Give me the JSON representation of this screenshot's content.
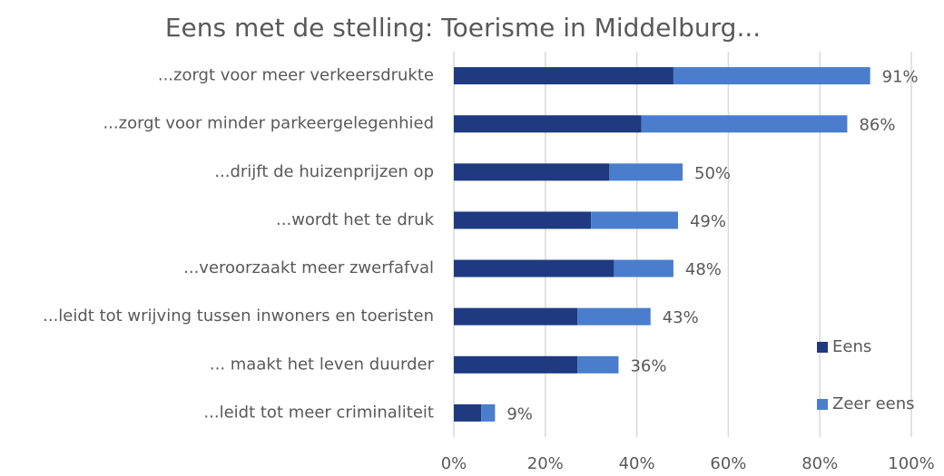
{
  "chart_data": {
    "type": "stacked-barh",
    "title": "Eens met de stelling: Toerisme in Middelburg...",
    "categories": [
      "...zorgt voor meer verkeersdrukte",
      "...zorgt voor minder parkeergelegenhied",
      "...drijft de huizenprijzen op",
      "...wordt het te druk",
      "...veroorzaakt meer zwerfafval",
      "...leidt tot wrijving tussen inwoners en toeristen",
      "... maakt het leven duurder",
      "...leidt tot meer criminaliteit"
    ],
    "series": [
      {
        "name": "Eens",
        "color": "#1f3a80",
        "values": [
          48,
          41,
          34,
          30,
          35,
          27,
          27,
          6
        ]
      },
      {
        "name": "Zeer eens",
        "color": "#4a7dcc",
        "values": [
          43,
          45,
          16,
          19,
          13,
          16,
          9,
          3
        ]
      }
    ],
    "totals": [
      91,
      86,
      50,
      49,
      48,
      43,
      36,
      9
    ],
    "total_labels": [
      "91%",
      "86%",
      "50%",
      "49%",
      "48%",
      "43%",
      "36%",
      "9%"
    ],
    "xlim": [
      0,
      100
    ],
    "xticks": [
      {
        "value": 0,
        "label": "0%"
      },
      {
        "value": 20,
        "label": "20%"
      },
      {
        "value": 40,
        "label": "40%"
      },
      {
        "value": 60,
        "label": "60%"
      },
      {
        "value": 80,
        "label": "80%"
      },
      {
        "value": 100,
        "label": "100%"
      }
    ],
    "grid": true,
    "legend": "right"
  }
}
